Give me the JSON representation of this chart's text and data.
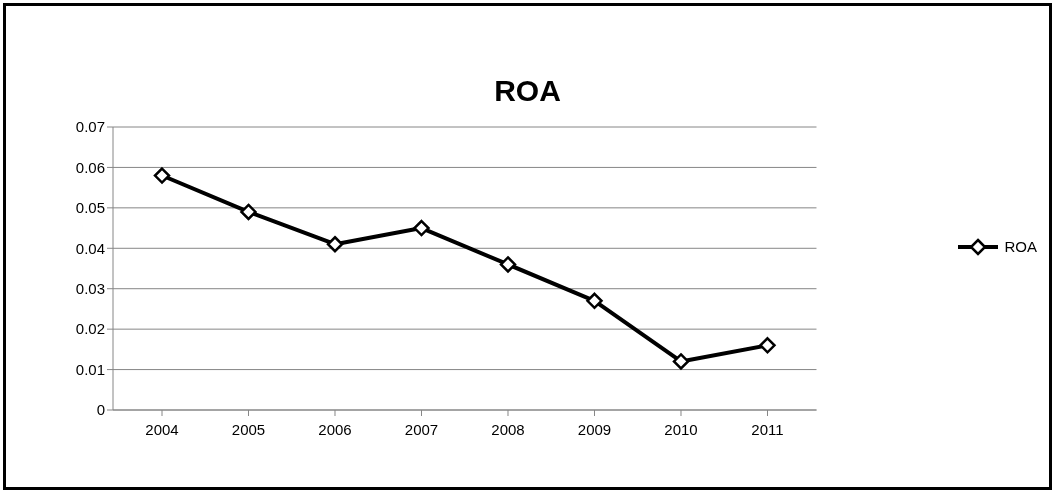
{
  "chart_data": {
    "type": "line",
    "title": "ROA",
    "categories": [
      "2004",
      "2005",
      "2006",
      "2007",
      "2008",
      "2009",
      "2010",
      "2011"
    ],
    "series": [
      {
        "name": "ROA",
        "color": "#000000",
        "values": [
          0.058,
          0.049,
          0.041,
          0.045,
          0.036,
          0.027,
          0.012,
          0.016
        ]
      }
    ],
    "ylim": [
      0,
      0.07
    ],
    "yticks": [
      0,
      0.01,
      0.02,
      0.03,
      0.04,
      0.05,
      0.06,
      0.07
    ],
    "grid": "y",
    "legend": "right",
    "marker": "diamond",
    "line_style": "solid"
  }
}
